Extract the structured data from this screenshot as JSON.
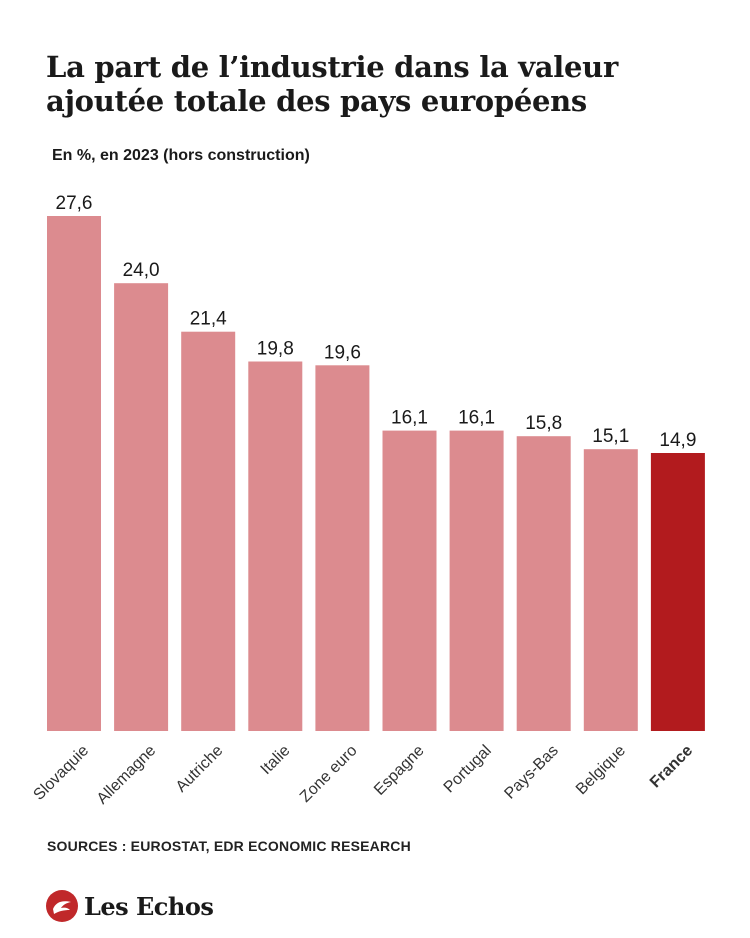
{
  "header": {
    "title": "La part de l’industrie dans la valeur ajoutée totale des pays européens",
    "subtitle": "En %, en 2023 (hors construction)"
  },
  "footer": {
    "source": "SOURCES : EUROSTAT, EDR ECONOMIC RESEARCH",
    "logo_text": "Les Echos",
    "logo_icon": "les-echos-logo-icon"
  },
  "chart_data": {
    "type": "bar",
    "categories": [
      "Slovaquie",
      "Allemagne",
      "Autriche",
      "Italie",
      "Zone euro",
      "Espagne",
      "Portugal",
      "Pays-Bas",
      "Belgique",
      "France"
    ],
    "values": [
      27.6,
      24.0,
      21.4,
      19.8,
      19.6,
      16.1,
      16.1,
      15.8,
      15.1,
      14.9
    ],
    "value_labels": [
      "27,6",
      "24,0",
      "21,4",
      "19,8",
      "19,6",
      "16,1",
      "16,1",
      "15,8",
      "15,1",
      "14,9"
    ],
    "highlight": "France",
    "colors": {
      "default": "#dc8b8f",
      "highlight": "#b21b1e"
    },
    "title": "La part de l’industrie dans la valeur ajoutée totale des pays européens",
    "subtitle": "En %, en 2023 (hors construction)",
    "xlabel": "",
    "ylabel": "",
    "ylim": [
      0,
      27.6
    ],
    "grid": false,
    "legend": "none"
  }
}
